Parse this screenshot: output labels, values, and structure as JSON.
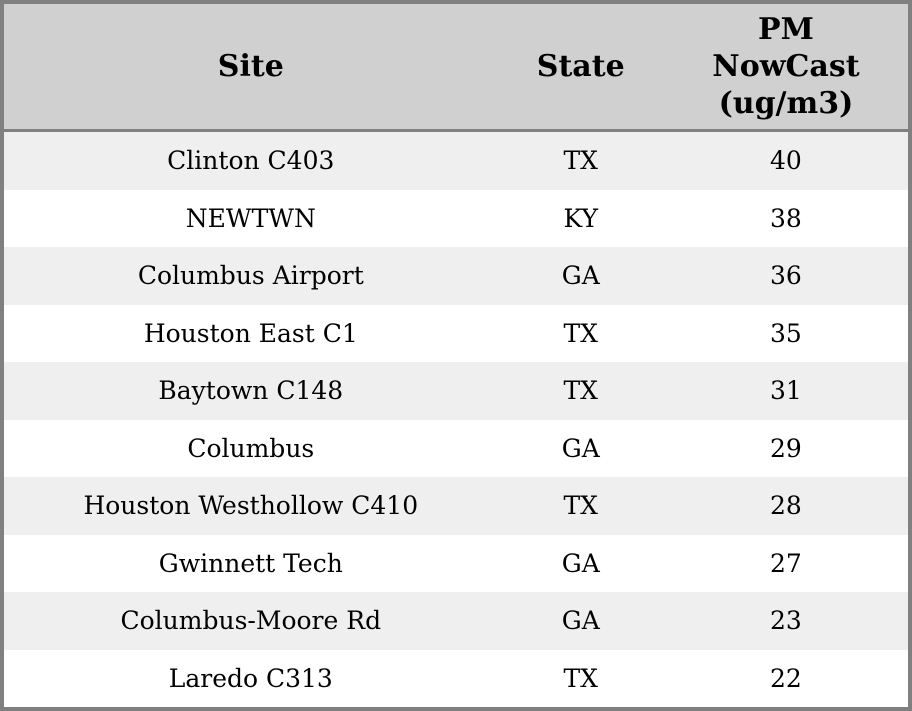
{
  "chart_data": {
    "type": "table",
    "columns": [
      {
        "label": "Site"
      },
      {
        "label": "State"
      },
      {
        "label": "PM NowCast (ug/m3)",
        "label_lines": [
          "PM",
          "NowCast",
          "(ug/m3)"
        ]
      }
    ],
    "rows": [
      {
        "site": "Clinton C403",
        "state": "TX",
        "pm_nowcast": 40
      },
      {
        "site": "NEWTWN",
        "state": "KY",
        "pm_nowcast": 38
      },
      {
        "site": "Columbus Airport",
        "state": "GA",
        "pm_nowcast": 36
      },
      {
        "site": "Houston East C1",
        "state": "TX",
        "pm_nowcast": 35
      },
      {
        "site": "Baytown C148",
        "state": "TX",
        "pm_nowcast": 31
      },
      {
        "site": "Columbus",
        "state": "GA",
        "pm_nowcast": 29
      },
      {
        "site": "Houston Westhollow C410",
        "state": "TX",
        "pm_nowcast": 28
      },
      {
        "site": "Gwinnett Tech",
        "state": "GA",
        "pm_nowcast": 27
      },
      {
        "site": "Columbus-Moore Rd",
        "state": "GA",
        "pm_nowcast": 23
      },
      {
        "site": "Laredo C313",
        "state": "TX",
        "pm_nowcast": 22
      }
    ],
    "layout": {
      "grid": "row-striping",
      "legend": "none"
    },
    "colors": {
      "header_bg": "#d0d0d0",
      "row_stripe_bg": "#efefef",
      "row_bg": "#ffffff",
      "border": "#808080",
      "text": "#000000"
    }
  }
}
